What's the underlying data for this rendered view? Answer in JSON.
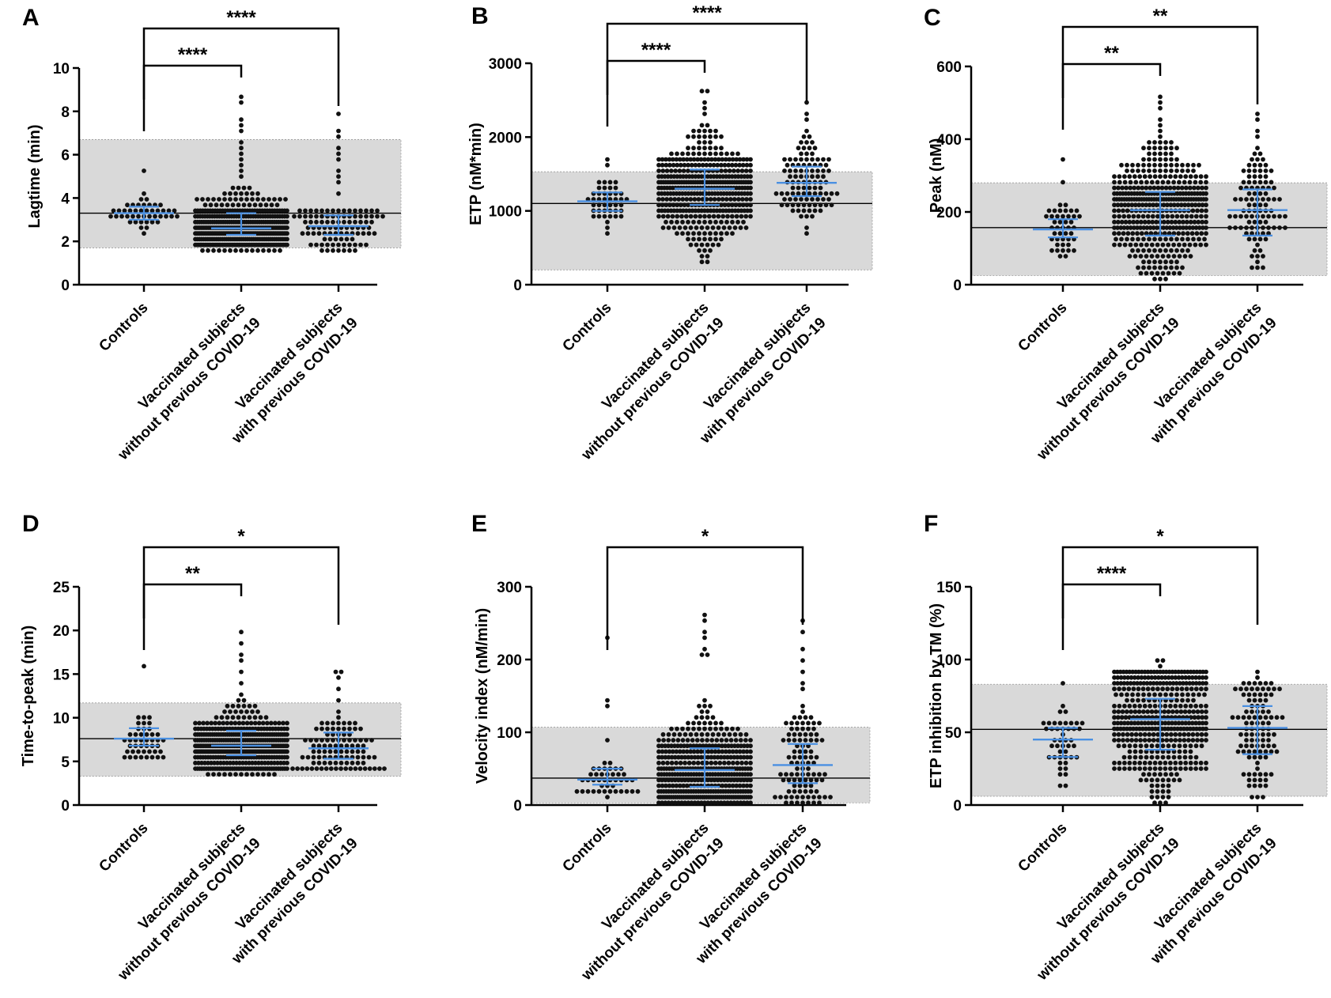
{
  "colors": {
    "dots": "#111111",
    "median_bars": "#4a90e2",
    "reference_band": "#d9d9d9",
    "axis": "#000000"
  },
  "chart_data": [
    {
      "panel": "A",
      "type": "scatter",
      "ylabel": "Lagtime (min)",
      "ylim": [
        0,
        10
      ],
      "yticks": [
        0,
        2,
        4,
        6,
        8,
        10
      ],
      "categories": [
        "Controls",
        "Vaccinated subjects without previous COVID-19",
        "Vaccinated subjects with previous COVID-19"
      ],
      "category_labels": [
        [
          "Controls"
        ],
        [
          "Vaccinated subjects",
          "without previous COVID-19"
        ],
        [
          "Vaccinated subjects",
          "with previous COVID-19"
        ]
      ],
      "reference_range": [
        1.7,
        6.7
      ],
      "reference_line": 3.3,
      "groups": [
        {
          "n": 45,
          "median": 3.3,
          "q1": 3.0,
          "q3": 3.6,
          "min": 2.3,
          "max": 4.4,
          "outliers": [
            5.3
          ]
        },
        {
          "n": 420,
          "median": 2.6,
          "q1": 2.3,
          "q3": 3.3,
          "min": 1.6,
          "max": 4.5,
          "outliers": [
            5.0,
            5.3,
            5.6,
            5.9,
            6.0,
            6.3,
            6.6,
            7.0,
            7.3,
            7.6,
            8.3,
            8.7
          ]
        },
        {
          "n": 105,
          "median": 2.7,
          "q1": 2.3,
          "q3": 3.2,
          "min": 1.6,
          "max": 3.4,
          "outliers": [
            4.2,
            4.6,
            5.0,
            5.3,
            5.7,
            6.0,
            6.4,
            6.9,
            7.0,
            7.8
          ]
        }
      ],
      "comparisons": [
        {
          "from": 0,
          "to": 1,
          "label": "****",
          "level": 1
        },
        {
          "from": 0,
          "to": 2,
          "label": "****",
          "level": 2
        }
      ]
    },
    {
      "panel": "B",
      "type": "scatter",
      "ylabel": "ETP (nM*min)",
      "ylim": [
        0,
        3000
      ],
      "yticks": [
        0,
        1000,
        2000,
        3000
      ],
      "categories": [
        "Controls",
        "Vaccinated subjects without previous COVID-19",
        "Vaccinated subjects with previous COVID-19"
      ],
      "category_labels": [
        [
          "Controls"
        ],
        [
          "Vaccinated subjects",
          "without previous COVID-19"
        ],
        [
          "Vaccinated subjects",
          "with previous COVID-19"
        ]
      ],
      "reference_range": [
        200,
        1530
      ],
      "reference_line": 1100,
      "groups": [
        {
          "n": 45,
          "median": 1130,
          "q1": 1000,
          "q3": 1250,
          "min": 650,
          "max": 1450,
          "outliers": [
            1600,
            1720
          ]
        },
        {
          "n": 420,
          "median": 1300,
          "q1": 1080,
          "q3": 1560,
          "min": 300,
          "max": 2200,
          "outliers": [
            2300,
            2400,
            2500,
            2600,
            2620
          ]
        },
        {
          "n": 105,
          "median": 1380,
          "q1": 1200,
          "q3": 1600,
          "min": 540,
          "max": 2000,
          "outliers": [
            2100,
            2200,
            2350,
            2480
          ]
        }
      ],
      "comparisons": [
        {
          "from": 0,
          "to": 1,
          "label": "****",
          "level": 1
        },
        {
          "from": 0,
          "to": 2,
          "label": "****",
          "level": 2
        }
      ]
    },
    {
      "panel": "C",
      "type": "scatter",
      "ylabel": "Peak (nM)",
      "ylim": [
        0,
        600
      ],
      "yticks": [
        0,
        200,
        400,
        600
      ],
      "categories": [
        "Controls",
        "Vaccinated subjects without previous COVID-19",
        "Vaccinated subjects with previous COVID-19"
      ],
      "category_labels": [
        [
          "Controls"
        ],
        [
          "Vaccinated subjects",
          "without previous COVID-19"
        ],
        [
          "Vaccinated subjects",
          "with previous COVID-19"
        ]
      ],
      "reference_range": [
        25,
        280
      ],
      "reference_line": 157,
      "groups": [
        {
          "n": 45,
          "median": 152,
          "q1": 130,
          "q3": 180,
          "min": 60,
          "max": 230,
          "outliers": [
            275,
            340
          ]
        },
        {
          "n": 420,
          "median": 205,
          "q1": 135,
          "q3": 255,
          "min": 20,
          "max": 420,
          "outliers": [
            440,
            460,
            480,
            500,
            510
          ]
        },
        {
          "n": 105,
          "median": 205,
          "q1": 135,
          "q3": 262,
          "min": 40,
          "max": 380,
          "outliers": [
            400,
            420,
            460,
            470
          ]
        }
      ],
      "comparisons": [
        {
          "from": 0,
          "to": 1,
          "label": "**",
          "level": 1
        },
        {
          "from": 0,
          "to": 2,
          "label": "**",
          "level": 2
        }
      ]
    },
    {
      "panel": "D",
      "type": "scatter",
      "ylabel": "Time-to-peak (min)",
      "ylim": [
        0,
        25
      ],
      "yticks": [
        0,
        5,
        10,
        15,
        20,
        25
      ],
      "categories": [
        "Controls",
        "Vaccinated subjects without previous COVID-19",
        "Vaccinated subjects with previous COVID-19"
      ],
      "category_labels": [
        [
          "Controls"
        ],
        [
          "Vaccinated subjects",
          "without previous COVID-19"
        ],
        [
          "Vaccinated subjects",
          "with previous COVID-19"
        ]
      ],
      "reference_range": [
        3.3,
        11.7
      ],
      "reference_line": 7.6,
      "groups": [
        {
          "n": 45,
          "median": 7.6,
          "q1": 6.8,
          "q3": 8.8,
          "min": 4.5,
          "max": 10.7,
          "outliers": [
            15.7
          ]
        },
        {
          "n": 420,
          "median": 6.8,
          "q1": 5.7,
          "q3": 8.5,
          "min": 3.7,
          "max": 14.7,
          "outliers": [
            15.5,
            16.5,
            17.0,
            18.3,
            20.0
          ]
        },
        {
          "n": 105,
          "median": 6.5,
          "q1": 5.3,
          "q3": 8.3,
          "min": 4.0,
          "max": 12.5,
          "outliers": [
            13.0,
            14.5,
            15.0,
            15.5
          ]
        }
      ],
      "comparisons": [
        {
          "from": 0,
          "to": 1,
          "label": "**",
          "level": 1
        },
        {
          "from": 0,
          "to": 2,
          "label": "*",
          "level": 2
        }
      ]
    },
    {
      "panel": "E",
      "type": "scatter",
      "ylabel": "Velocity index (nM/min)",
      "ylim": [
        0,
        300
      ],
      "yticks": [
        0,
        100,
        200,
        300
      ],
      "categories": [
        "Controls",
        "Vaccinated subjects without previous COVID-19",
        "Vaccinated subjects with previous COVID-19"
      ],
      "category_labels": [
        [
          "Controls"
        ],
        [
          "Vaccinated subjects",
          "without previous COVID-19"
        ],
        [
          "Vaccinated subjects",
          "with previous COVID-19"
        ]
      ],
      "reference_range": [
        3,
        107
      ],
      "reference_line": 37,
      "groups": [
        {
          "n": 45,
          "median": 35,
          "q1": 28,
          "q3": 50,
          "min": 12,
          "max": 75,
          "outliers": [
            93,
            133,
            147,
            227
          ]
        },
        {
          "n": 420,
          "median": 48,
          "q1": 25,
          "q3": 78,
          "min": 2,
          "max": 200,
          "outliers": [
            205,
            210,
            215,
            230,
            240,
            255,
            265
          ]
        },
        {
          "n": 105,
          "median": 55,
          "q1": 30,
          "q3": 84,
          "min": 2,
          "max": 150,
          "outliers": [
            160,
            170,
            185,
            195,
            215,
            237,
            257
          ]
        }
      ],
      "comparisons": [
        {
          "from": 0,
          "to": 2,
          "label": "*",
          "level": 2
        }
      ]
    },
    {
      "panel": "F",
      "type": "scatter",
      "ylabel": "ETP inhibition by TM (%)",
      "ylim": [
        0,
        150
      ],
      "yticks": [
        0,
        50,
        100,
        150
      ],
      "categories": [
        "Controls",
        "Vaccinated subjects without previous COVID-19",
        "Vaccinated subjects with previous COVID-19"
      ],
      "category_labels": [
        [
          "Controls"
        ],
        [
          "Vaccinated subjects",
          "without previous COVID-19"
        ],
        [
          "Vaccinated subjects",
          "with previous COVID-19"
        ]
      ],
      "reference_range": [
        6,
        83
      ],
      "reference_line": 52,
      "groups": [
        {
          "n": 45,
          "median": 45,
          "q1": 33,
          "q3": 53,
          "min": 0,
          "max": 72,
          "outliers": [
            82
          ]
        },
        {
          "n": 420,
          "median": 59,
          "q1": 38,
          "q3": 73,
          "min": 0,
          "max": 93,
          "outliers": [
            96,
            99,
            101
          ]
        },
        {
          "n": 105,
          "median": 53,
          "q1": 35,
          "q3": 68,
          "min": 0,
          "max": 86,
          "outliers": [
            89,
            91
          ]
        }
      ],
      "comparisons": [
        {
          "from": 0,
          "to": 1,
          "label": "****",
          "level": 1
        },
        {
          "from": 0,
          "to": 2,
          "label": "*",
          "level": 2
        }
      ]
    }
  ]
}
